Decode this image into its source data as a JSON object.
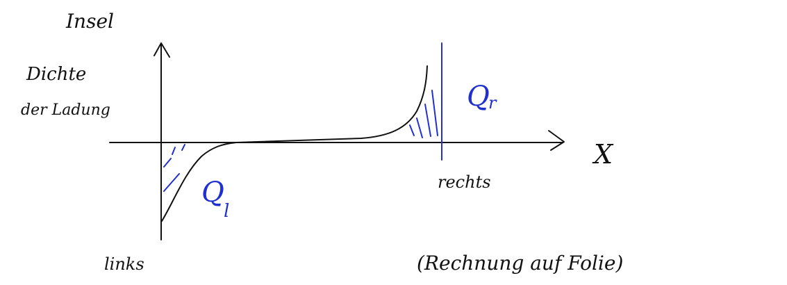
{
  "title": "Insel",
  "y_axis_label": [
    "Dichte",
    "der Ladung"
  ],
  "x_axis_label": "X",
  "right_label": "rechts",
  "left_label": "links",
  "charge_right": {
    "symbol": "Q",
    "subscript": "r"
  },
  "charge_left": {
    "symbol": "Q",
    "subscript": "l"
  },
  "note": "(Rechnung auf Folie)"
}
